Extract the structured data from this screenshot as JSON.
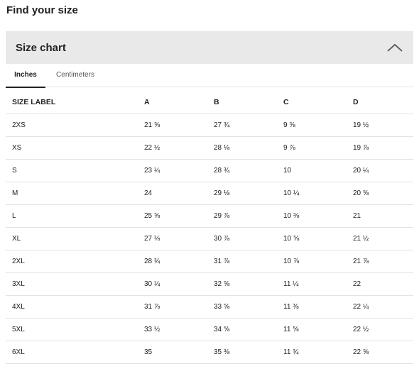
{
  "page_title": "Find your size",
  "accordion": {
    "title": "Size chart",
    "toggle_icon": "chevron-up-icon",
    "expanded": true
  },
  "tabs": [
    {
      "label": "Inches",
      "active": true
    },
    {
      "label": "Centimeters",
      "active": false
    }
  ],
  "table": {
    "headers": [
      "SIZE LABEL",
      "A",
      "B",
      "C",
      "D"
    ],
    "rows": [
      [
        "2XS",
        "21 ⅝",
        "27 ¾",
        "9 ⅝",
        "19 ½"
      ],
      [
        "XS",
        "22 ½",
        "28 ⅛",
        "9 ⅞",
        "19 ⅞"
      ],
      [
        "S",
        "23 ¼",
        "28 ¾",
        "10",
        "20 ¼"
      ],
      [
        "M",
        "24",
        "29 ⅛",
        "10 ¼",
        "20 ⅝"
      ],
      [
        "L",
        "25 ⅝",
        "29 ⅞",
        "10 ⅜",
        "21"
      ],
      [
        "XL",
        "27 ⅛",
        "30 ⅞",
        "10 ⅝",
        "21 ½"
      ],
      [
        "2XL",
        "28 ¾",
        "31 ⅞",
        "10 ⅞",
        "21 ⅞"
      ],
      [
        "3XL",
        "30 ¼",
        "32 ⅝",
        "11 ¼",
        "22"
      ],
      [
        "4XL",
        "31 ⅞",
        "33 ⅝",
        "11 ⅜",
        "22 ¼"
      ],
      [
        "5XL",
        "33 ½",
        "34 ⅝",
        "11 ⅝",
        "22 ½"
      ],
      [
        "6XL",
        "35",
        "35 ⅜",
        "11 ¾",
        "22 ⅝"
      ]
    ]
  },
  "colors": {
    "header_bg": "#e9e9e9",
    "divider": "#e3e3e3",
    "text": "#222222"
  }
}
